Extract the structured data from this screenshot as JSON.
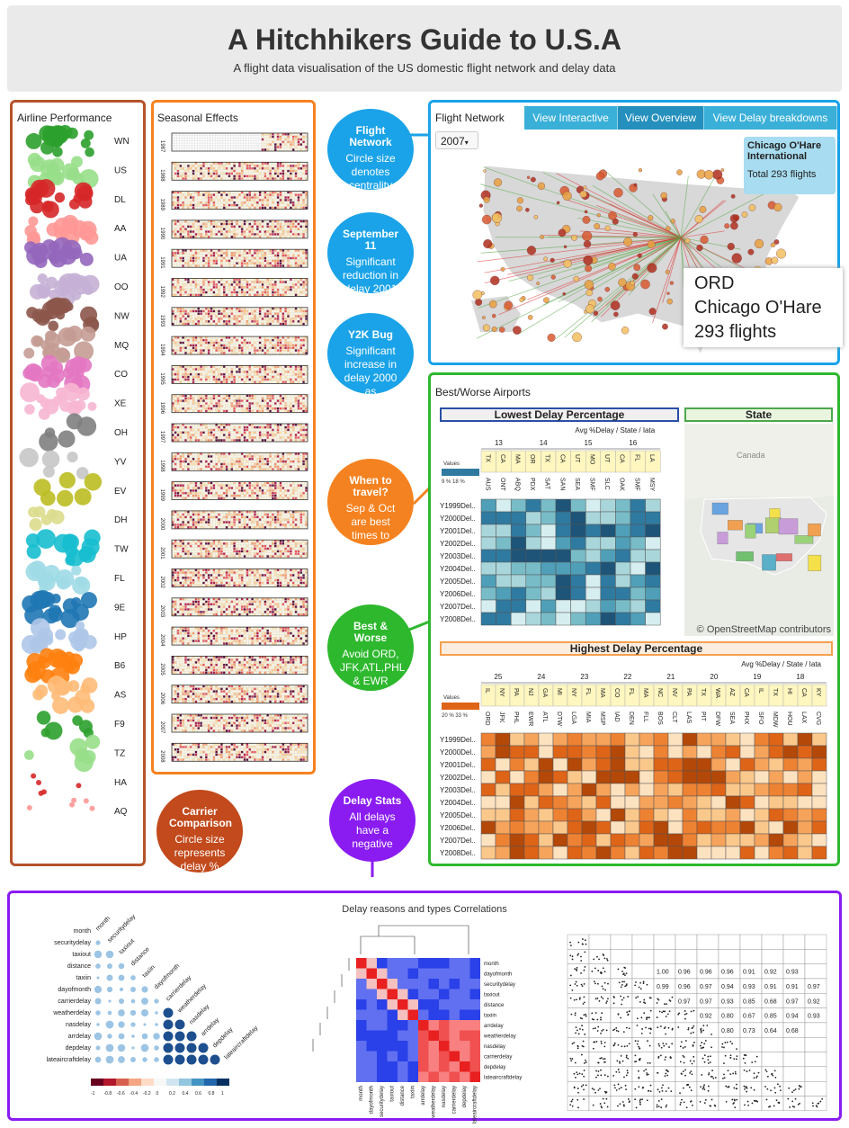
{
  "header": {
    "title": "A Hitchhikers Guide to U.S.A",
    "subtitle": "A flight data visualisation of the US domestic flight network and delay data"
  },
  "airline": {
    "title": "Airline Performance",
    "carriers": [
      "WN",
      "US",
      "DL",
      "AA",
      "UA",
      "OO",
      "NW",
      "MQ",
      "CO",
      "XE",
      "OH",
      "YV",
      "EV",
      "DH",
      "TW",
      "FL",
      "9E",
      "HP",
      "B6",
      "AS",
      "F9",
      "TZ",
      "HA",
      "AQ"
    ],
    "colors": [
      "#2ca02c",
      "#98df8a",
      "#d62728",
      "#ff9896",
      "#9467bd",
      "#c5b0d5",
      "#8c564b",
      "#c49c94",
      "#e377c2",
      "#f7b6d2",
      "#7f7f7f",
      "#c7c7c7",
      "#bcbd22",
      "#dbdb8d",
      "#17becf",
      "#9edae5",
      "#1f77b4",
      "#aec7e8",
      "#ff7f0e",
      "#ffbb78",
      "#2ca02c",
      "#98df8a",
      "#d62728",
      "#ff9896"
    ]
  },
  "seasonal": {
    "title": "Seasonal Effects",
    "years": [
      "1987",
      "1988",
      "1989",
      "1990",
      "1991",
      "1992",
      "1993",
      "1994",
      "1995",
      "1996",
      "1997",
      "1998",
      "1999",
      "2000",
      "2001",
      "2002",
      "2003",
      "2004",
      "2005",
      "2006",
      "2007",
      "2008"
    ]
  },
  "bubbles": [
    {
      "title": "Flight Network",
      "body": "Circle size denotes centrality",
      "color": "#1aa3e8"
    },
    {
      "title": "September 11",
      "body": "Significant reduction in delay 2001",
      "color": "#1aa3e8"
    },
    {
      "title": "Y2K Bug",
      "body": "Significant increase in delay 2000 as compared",
      "color": "#1aa3e8"
    },
    {
      "title": "When to travel?",
      "body": "Sep & Oct are best times to",
      "color": "#f58220"
    },
    {
      "title": "Best & Worse",
      "body": "Avoid ORD, JFK,ATL,PHL & EWR",
      "color": "#2eb82e"
    },
    {
      "title": "Delay Stats",
      "body": "All delays have a negative",
      "color": "#8a1cf2"
    },
    {
      "title": "Carrier Comparison",
      "body": "Circle size represents delay %",
      "color": "#c24a1c"
    }
  ],
  "network": {
    "title": "Flight Network",
    "tabs": [
      "View Interactive",
      "View Overview",
      "View Delay breakdowns"
    ],
    "year": "2007",
    "tooltip_name": "Chicago O'Hare International",
    "tooltip_total": "Total 293 flights",
    "big_code": "ORD",
    "big_name": "Chicago O'Hare",
    "big_flights": "293 flights"
  },
  "airports": {
    "title": "Best/Worse Airports",
    "lowest": {
      "title": "Lowest Delay Percentage",
      "sub": "Avg %Delay / State / Iata",
      "values_label": "Values",
      "legend": "9 %   18 %",
      "groups": [
        "13",
        "14",
        "15",
        "16"
      ],
      "states": [
        "TX",
        "CA",
        "MA",
        "OR",
        "TX",
        "CA",
        "UT",
        "MO",
        "UT",
        "CA",
        "FL",
        "LA"
      ],
      "iatas": [
        "AUS",
        "ONT",
        "ABQ",
        "PDX",
        "SAT",
        "SAN",
        "SEA",
        "SMF",
        "SLC",
        "OAK",
        "SMF",
        "MSY"
      ]
    },
    "state_title": "State",
    "map_credit": "© OpenStreetMap contributors",
    "canada": "Canada",
    "highest": {
      "title": "Highest Delay Percentage",
      "sub": "Avg %Delay / State / Iata",
      "values_label": "Values",
      "legend": "20 %  33 %",
      "groups": [
        "25",
        "24",
        "23",
        "22",
        "21",
        "20",
        "19",
        "18"
      ],
      "states": [
        "IL",
        "NY",
        "PA",
        "NJ",
        "GA",
        "MI",
        "NY",
        "FL",
        "MA",
        "CO",
        "FL",
        "MA",
        "NC",
        "NV",
        "PA",
        "TX",
        "WA",
        "AZ",
        "CA",
        "IL",
        "TX",
        "HI",
        "CA",
        "KY"
      ],
      "iatas": [
        "ORD",
        "JFK",
        "PHL",
        "EWR",
        "ATL",
        "DTW",
        "LGA",
        "MIA",
        "MSP",
        "IAD",
        "DEN",
        "FLL",
        "BOS",
        "CLT",
        "LAS",
        "PIT",
        "DFW",
        "SEA",
        "PHX",
        "SFO",
        "MDW",
        "HOU",
        "LAX",
        "CVG"
      ]
    },
    "rows": [
      "Y1999Del..",
      "Y2000Del..",
      "Y2001Del..",
      "Y2002Del..",
      "Y2003Del..",
      "Y2004Del..",
      "Y2005Del..",
      "Y2006Del..",
      "Y2007Del..",
      "Y2008Del.."
    ]
  },
  "correlations": {
    "title": "Delay reasons and types Correlations",
    "vars": [
      "month",
      "securitydelay",
      "taxiout",
      "distance",
      "taxiin",
      "dayofmonth",
      "carrierdelay",
      "weatherdelay",
      "nasdelay",
      "arrdelay",
      "depdelay",
      "lateaircraftdelay"
    ],
    "vars2": [
      "month",
      "dayofmonth",
      "securitydelay",
      "taxiout",
      "distance",
      "taxiin",
      "arrdelay",
      "weatherdelay",
      "nasdelay",
      "carrierdelay",
      "depdelay",
      "lateaircraftdelay"
    ],
    "scale": [
      "-1",
      "-0.8",
      "-0.6",
      "-0.4",
      "-0.2",
      "0",
      "0.2",
      "0.4",
      "0.6",
      "0.8",
      "1"
    ],
    "matrix_vals": [
      "1.00",
      "0.96",
      "0.96",
      "0.96",
      "0.91",
      "0.92",
      "0.93",
      "0.99",
      "0.96",
      "0.97",
      "0.94",
      "0.93",
      "0.91",
      "0.91",
      "0.97",
      "0.97",
      "0.97",
      "0.93",
      "0.85",
      "0.68",
      "0.97",
      "0.92",
      "0.92",
      "0.80",
      "0.67",
      "0.85",
      "0.94",
      "0.93",
      "0.80",
      "0.73",
      "0.64",
      "0.68"
    ]
  }
}
